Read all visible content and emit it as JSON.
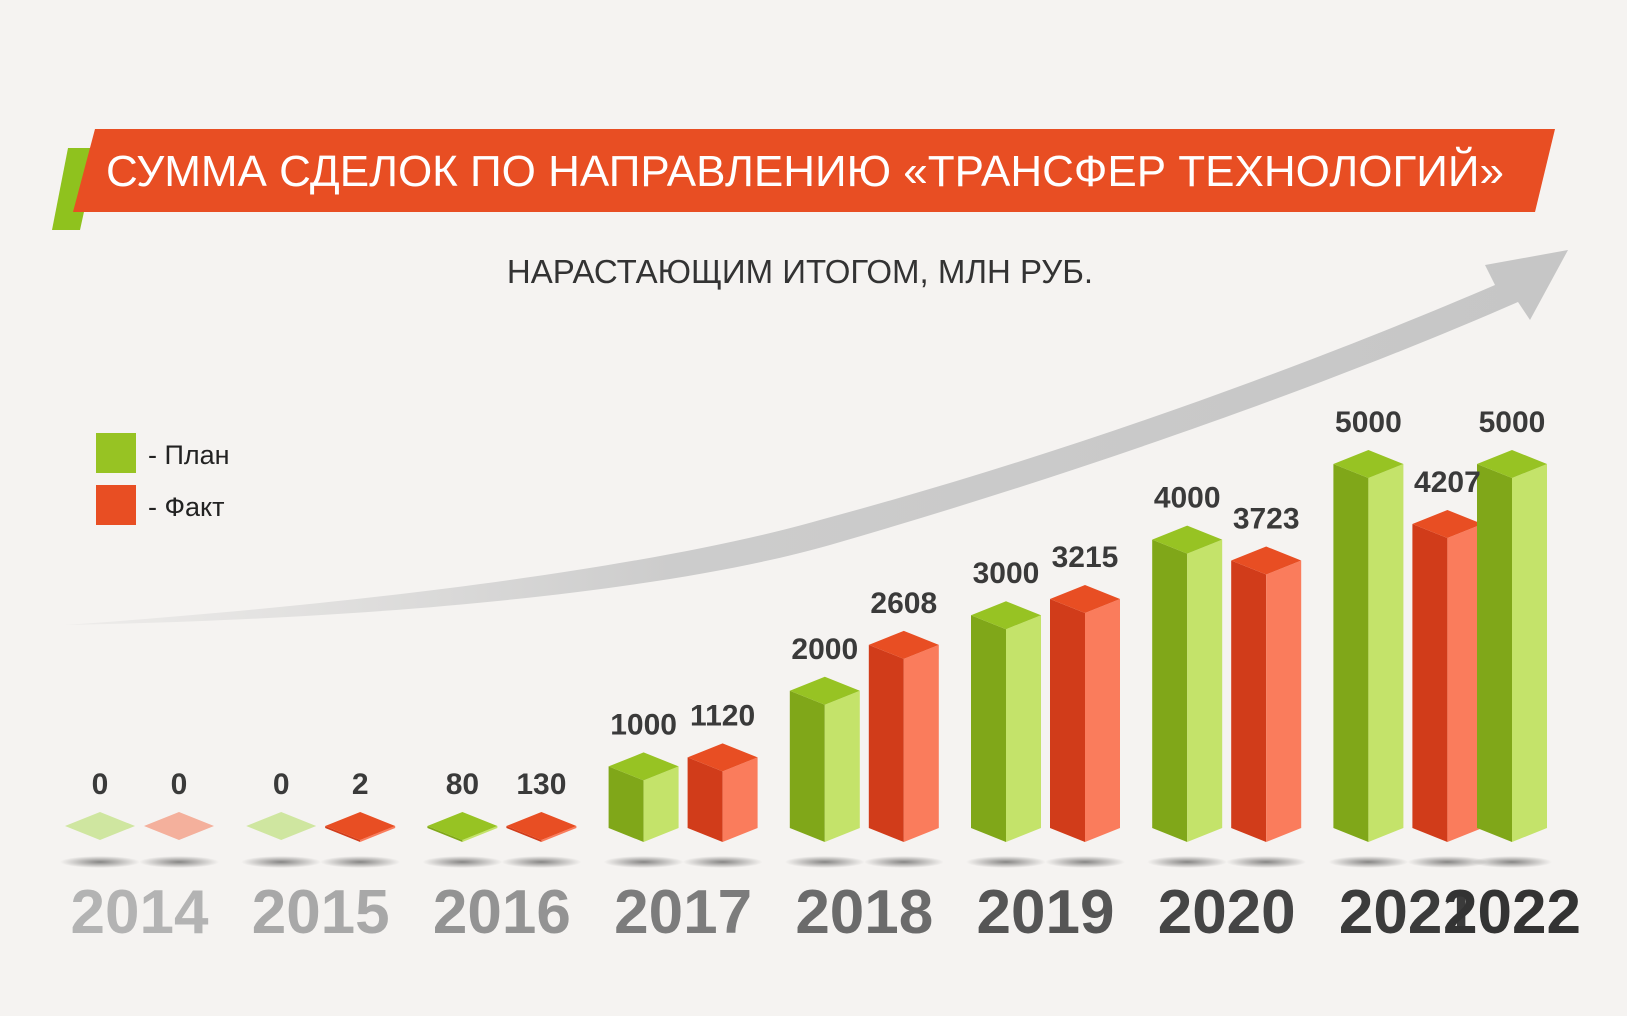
{
  "header": {
    "title": "СУММА СДЕЛОК ПО НАПРАВЛЕНИЮ «ТРАНСФЕР ТЕХНОЛОГИЙ»",
    "subtitle": "НАРАСТАЮЩИМ ИТОГОМ, МЛН РУБ."
  },
  "legend": {
    "plan": "- План",
    "fact": "- Факт"
  },
  "colors": {
    "plan_front": "#80a719",
    "plan_side": "#c4e36a",
    "plan_top": "#97c323",
    "fact_front": "#d13c1a",
    "fact_side": "#fa7c5c",
    "fact_top": "#e84e23",
    "banner": "#e84e23",
    "banner_accent": "#8fc21e"
  },
  "chart_data": {
    "type": "bar",
    "categories": [
      "2014",
      "2015",
      "2016",
      "2017",
      "2018",
      "2019",
      "2020",
      "2021",
      "2022"
    ],
    "series": [
      {
        "name": "План",
        "values": [
          0,
          0,
          80,
          1000,
          2000,
          3000,
          4000,
          5000,
          5000
        ]
      },
      {
        "name": "Факт",
        "values": [
          0,
          2,
          130,
          1120,
          2608,
          3215,
          3723,
          4207,
          null
        ]
      }
    ],
    "value_labels": {
      "plan": [
        "0",
        "0",
        "80",
        "1000",
        "2000",
        "3000",
        "4000",
        "5000",
        "5000"
      ],
      "fact": [
        "0",
        "2",
        "130",
        "1120",
        "2608",
        "3215",
        "3723",
        "4207",
        ""
      ]
    },
    "title": "СУММА СДЕЛОК ПО НАПРАВЛЕНИЮ «ТРАНСФЕР ТЕХНОЛОГИЙ»",
    "subtitle": "НАРАСТАЮЩИМ ИТОГОМ, МЛН РУБ.",
    "xlabel": "",
    "ylabel": "",
    "ylim": [
      0,
      5000
    ],
    "grid": false,
    "legend_position": "left"
  }
}
